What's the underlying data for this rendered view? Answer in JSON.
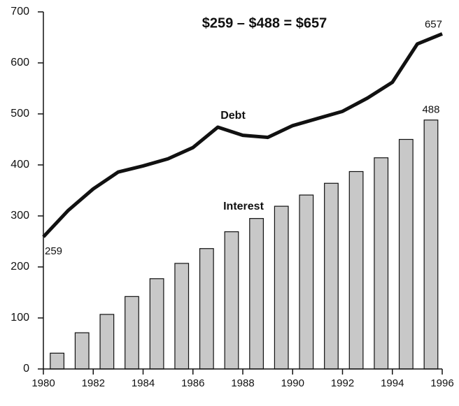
{
  "chart_data": {
    "type": "bar-line",
    "title": "$259 – $488 = $657",
    "x": [
      1980,
      1981,
      1982,
      1983,
      1984,
      1985,
      1986,
      1987,
      1988,
      1989,
      1990,
      1991,
      1992,
      1993,
      1994,
      1995,
      1996
    ],
    "series": [
      {
        "name": "Debt",
        "type": "line",
        "color": "#111111",
        "values": [
          259,
          311,
          353,
          386,
          398,
          412,
          434,
          474,
          458,
          454,
          477,
          491,
          505,
          531,
          562,
          637,
          657
        ]
      },
      {
        "name": "Interest",
        "type": "bar",
        "color": "#c8c8c8",
        "values": [
          null,
          31,
          71,
          107,
          142,
          177,
          207,
          236,
          269,
          295,
          319,
          341,
          364,
          387,
          414,
          450,
          488
        ]
      }
    ],
    "xlim": [
      1980,
      1996
    ],
    "xticks": [
      1980,
      1982,
      1984,
      1986,
      1988,
      1990,
      1992,
      1994,
      1996
    ],
    "ylim": [
      0,
      700
    ],
    "yticks": [
      0,
      100,
      200,
      300,
      400,
      500,
      600,
      700
    ],
    "grid": false
  }
}
